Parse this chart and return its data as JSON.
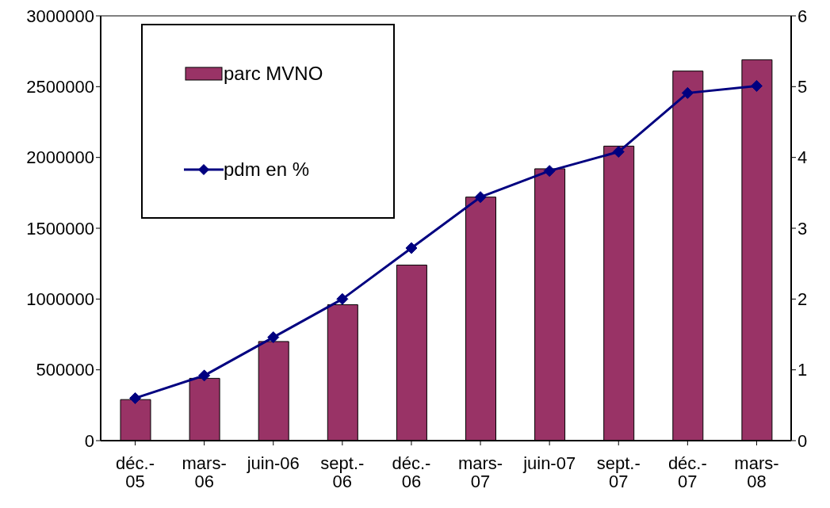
{
  "chart_data": {
    "type": "bar",
    "categories": [
      "déc.-05",
      "mars-06",
      "juin-06",
      "sept.-06",
      "déc.-06",
      "mars-07",
      "juin-07",
      "sept.-07",
      "déc.-07",
      "mars-08"
    ],
    "series": [
      {
        "name": "parc MVNO",
        "color": "#993366",
        "values": [
          290000,
          440000,
          700000,
          960000,
          1240000,
          1720000,
          1920000,
          2080000,
          2610000,
          2690000
        ]
      },
      {
        "name": "pdm en %",
        "type": "line",
        "axis": "y2",
        "color": "#000080",
        "values": [
          0.6,
          0.92,
          1.46,
          2.0,
          2.72,
          3.44,
          3.81,
          4.08,
          4.91,
          5.01
        ]
      }
    ],
    "ylim": [
      0,
      3000000
    ],
    "yticks": [
      0,
      500000,
      1000000,
      1500000,
      2000000,
      2500000,
      3000000
    ],
    "y2lim": [
      0,
      6
    ],
    "y2ticks": [
      0,
      1,
      2,
      3,
      4,
      5,
      6
    ],
    "marker": "diamond",
    "legend": "top left",
    "grid": false
  }
}
